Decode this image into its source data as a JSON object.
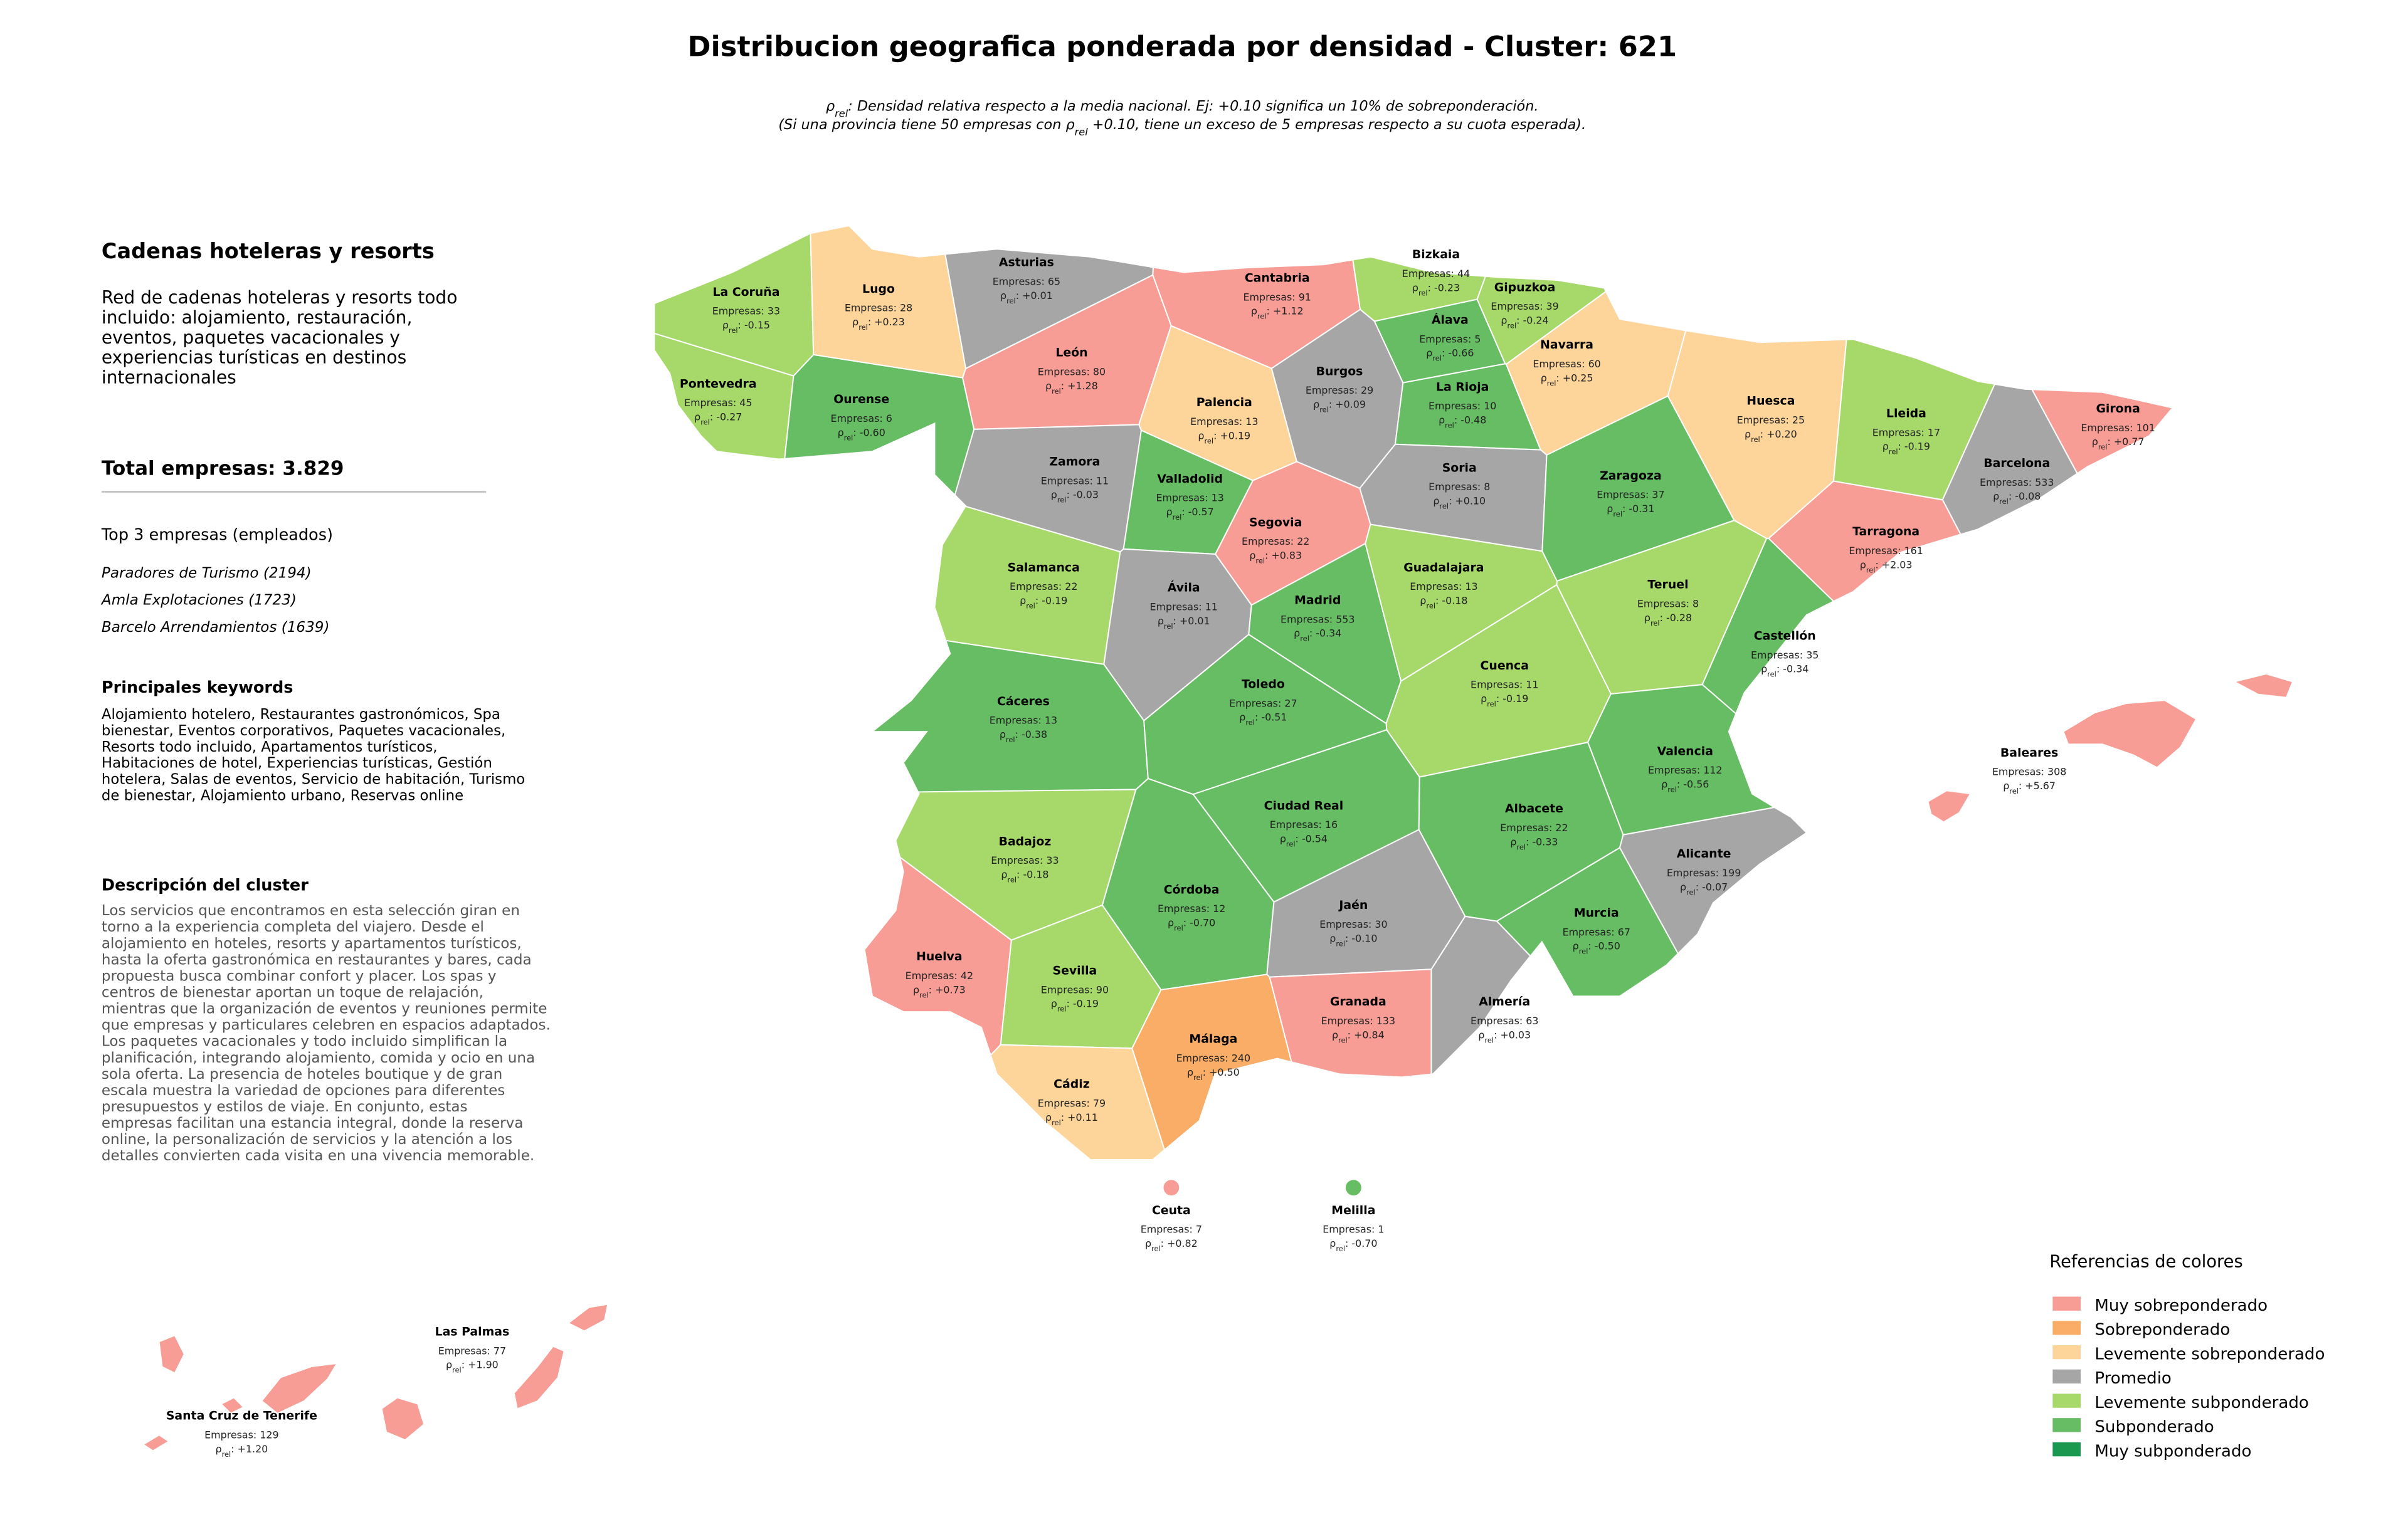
{
  "header": {
    "title": "Distribucion geografica ponderada por densidad - Cluster: 621",
    "subtitle_lines": [
      [
        {
          "text": "ρ"
        },
        {
          "text": "rel",
          "sub": true
        },
        {
          "text": ": Densidad relativa respecto a la media nacional. Ej: +0.10 significa un 10% de sobreponderación."
        }
      ],
      [
        {
          "text": "(Si una provincia tiene 50 empresas con "
        },
        {
          "text": "ρ"
        },
        {
          "text": "rel",
          "sub": true
        },
        {
          "text": " +0.10, tiene un exceso de 5 empresas respecto a su cuota esperada)."
        }
      ]
    ]
  },
  "panel": {
    "name": "Cadenas hoteleras y resorts",
    "summary_lines": [
      "Red de cadenas hoteleras y resorts todo",
      "incluido: alojamiento, restauración,",
      "eventos, paquetes vacacionales y",
      "experiencias turísticas en destinos",
      "internacionales"
    ],
    "total": "Total empresas: 3.829",
    "top_title": "Top 3 empresas (empleados)",
    "top_companies": [
      "Paradores de Turismo (2194)",
      "Amla Explotaciones (1723)",
      "Barcelo Arrendamientos (1639)"
    ],
    "keywords_title": "Principales keywords",
    "keywords_lines": [
      "Alojamiento hotelero, Restaurantes gastronómicos, Spa",
      "bienestar, Eventos corporativos, Paquetes vacacionales,",
      "Resorts todo incluido, Apartamentos turísticos,",
      "Habitaciones de hotel, Experiencias turísticas, Gestión",
      "hotelera, Salas de eventos, Servicio de habitación, Turismo",
      "de bienestar, Alojamiento urbano, Reservas online"
    ],
    "description_title": "Descripción del cluster",
    "description_lines": [
      "Los servicios que encontramos en esta selección giran en",
      "torno a la experiencia completa del viajero. Desde el",
      "alojamiento en hoteles, resorts y apartamentos turísticos,",
      "hasta la oferta gastronómica en restaurantes y bares, cada",
      "propuesta busca combinar confort y placer. Los spas y",
      "centros de bienestar aportan un toque de relajación,",
      "mientras que la organización de eventos y reuniones permite",
      "que empresas y particulares celebren en espacios adaptados.",
      "Los paquetes vacacionales y todo incluido simplifican la",
      "planificación, integrando alojamiento, comida y ocio en una",
      "sola oferta. La presencia de hoteles boutique y de gran",
      "escala muestra la variedad de opciones para diferentes",
      "presupuestos y estilos de viaje. En conjunto, estas",
      "empresas facilitan una estancia integral, donde la reserva",
      "online, la personalización de servicios y la atención a los",
      "detalles convierten cada visita en una vivencia memorable."
    ]
  },
  "map": {
    "count_prefix": "Empresas: ",
    "rho_symbol": "ρ",
    "rho_subscript": "rel",
    "rho_separator": ": ",
    "provinces": [
      {
        "name": "La Coruña",
        "count": 33,
        "rho": "-0.15",
        "color": "#a6d96a"
      },
      {
        "name": "Lugo",
        "count": 28,
        "rho": "+0.23",
        "color": "#fdd49a"
      },
      {
        "name": "Asturias",
        "count": 65,
        "rho": "+0.01",
        "color": "#a6a6a6"
      },
      {
        "name": "Cantabria",
        "count": 91,
        "rho": "+1.12",
        "color": "#f89d96"
      },
      {
        "name": "Bizkaia",
        "count": 44,
        "rho": "-0.23",
        "color": "#a6d96a"
      },
      {
        "name": "Gipuzkoa",
        "count": 39,
        "rho": "-0.24",
        "color": "#a6d96a"
      },
      {
        "name": "Pontevedra",
        "count": 45,
        "rho": "-0.27",
        "color": "#a6d96a"
      },
      {
        "name": "Ourense",
        "count": 6,
        "rho": "-0.60",
        "color": "#66bd63"
      },
      {
        "name": "León",
        "count": 80,
        "rho": "+1.28",
        "color": "#f89d96"
      },
      {
        "name": "Palencia",
        "count": 13,
        "rho": "+0.19",
        "color": "#fdd49a"
      },
      {
        "name": "Burgos",
        "count": 29,
        "rho": "+0.09",
        "color": "#a6a6a6"
      },
      {
        "name": "Álava",
        "count": 5,
        "rho": "-0.66",
        "color": "#66bd63"
      },
      {
        "name": "La Rioja",
        "count": 10,
        "rho": "-0.48",
        "color": "#66bd63"
      },
      {
        "name": "Navarra",
        "count": 60,
        "rho": "+0.25",
        "color": "#fdd49a"
      },
      {
        "name": "Huesca",
        "count": 25,
        "rho": "+0.20",
        "color": "#fdd49a"
      },
      {
        "name": "Lleida",
        "count": 17,
        "rho": "-0.19",
        "color": "#a6d96a"
      },
      {
        "name": "Girona",
        "count": 101,
        "rho": "+0.77",
        "color": "#f89d96"
      },
      {
        "name": "Barcelona",
        "count": 533,
        "rho": "-0.08",
        "color": "#a6a6a6"
      },
      {
        "name": "Zamora",
        "count": 11,
        "rho": "-0.03",
        "color": "#a6a6a6"
      },
      {
        "name": "Valladolid",
        "count": 13,
        "rho": "-0.57",
        "color": "#66bd63"
      },
      {
        "name": "Soria",
        "count": 8,
        "rho": "+0.10",
        "color": "#a6a6a6"
      },
      {
        "name": "Zaragoza",
        "count": 37,
        "rho": "-0.31",
        "color": "#66bd63"
      },
      {
        "name": "Tarragona",
        "count": 161,
        "rho": "+2.03",
        "color": "#f89d96"
      },
      {
        "name": "Segovia",
        "count": 22,
        "rho": "+0.83",
        "color": "#f89d96"
      },
      {
        "name": "Salamanca",
        "count": 22,
        "rho": "-0.19",
        "color": "#a6d96a"
      },
      {
        "name": "Guadalajara",
        "count": 13,
        "rho": "-0.18",
        "color": "#a6d96a"
      },
      {
        "name": "Teruel",
        "count": 8,
        "rho": "-0.28",
        "color": "#a6d96a"
      },
      {
        "name": "Ávila",
        "count": 11,
        "rho": "+0.01",
        "color": "#a6a6a6"
      },
      {
        "name": "Madrid",
        "count": 553,
        "rho": "-0.34",
        "color": "#66bd63"
      },
      {
        "name": "Castellón",
        "count": 35,
        "rho": "-0.34",
        "color": "#66bd63"
      },
      {
        "name": "Cuenca",
        "count": 11,
        "rho": "-0.19",
        "color": "#a6d96a"
      },
      {
        "name": "Cáceres",
        "count": 13,
        "rho": "-0.38",
        "color": "#66bd63"
      },
      {
        "name": "Toledo",
        "count": 27,
        "rho": "-0.51",
        "color": "#66bd63"
      },
      {
        "name": "Valencia",
        "count": 112,
        "rho": "-0.56",
        "color": "#66bd63"
      },
      {
        "name": "Baleares",
        "count": 308,
        "rho": "+5.67",
        "color": "#f89d96"
      },
      {
        "name": "Ciudad Real",
        "count": 16,
        "rho": "-0.54",
        "color": "#66bd63"
      },
      {
        "name": "Albacete",
        "count": 22,
        "rho": "-0.33",
        "color": "#66bd63"
      },
      {
        "name": "Badajoz",
        "count": 33,
        "rho": "-0.18",
        "color": "#a6d96a"
      },
      {
        "name": "Alicante",
        "count": 199,
        "rho": "-0.07",
        "color": "#a6a6a6"
      },
      {
        "name": "Córdoba",
        "count": 12,
        "rho": "-0.70",
        "color": "#66bd63"
      },
      {
        "name": "Jaén",
        "count": 30,
        "rho": "-0.10",
        "color": "#a6a6a6"
      },
      {
        "name": "Murcia",
        "count": 67,
        "rho": "-0.50",
        "color": "#66bd63"
      },
      {
        "name": "Huelva",
        "count": 42,
        "rho": "+0.73",
        "color": "#f89d96"
      },
      {
        "name": "Sevilla",
        "count": 90,
        "rho": "-0.19",
        "color": "#a6d96a"
      },
      {
        "name": "Granada",
        "count": 133,
        "rho": "+0.84",
        "color": "#f89d96"
      },
      {
        "name": "Almería",
        "count": 63,
        "rho": "+0.03",
        "color": "#a6a6a6"
      },
      {
        "name": "Málaga",
        "count": 240,
        "rho": "+0.50",
        "color": "#f9ad66"
      },
      {
        "name": "Cádiz",
        "count": 79,
        "rho": "+0.11",
        "color": "#fdd49a"
      },
      {
        "name": "Ceuta",
        "count": 7,
        "rho": "+0.82",
        "color": "#f89d96"
      },
      {
        "name": "Melilla",
        "count": 1,
        "rho": "-0.70",
        "color": "#66bd63"
      },
      {
        "name": "Las Palmas",
        "count": 77,
        "rho": "+1.90",
        "color": "#f89d96"
      },
      {
        "name": "Santa Cruz de Tenerife",
        "count": 129,
        "rho": "+1.20",
        "color": "#f89d96"
      }
    ]
  },
  "legend": {
    "title": "Referencias de colores",
    "items": [
      {
        "label": "Muy sobreponderado",
        "color": "#f89d96"
      },
      {
        "label": "Sobreponderado",
        "color": "#f9ad66"
      },
      {
        "label": "Levemente sobreponderado",
        "color": "#fdd49a"
      },
      {
        "label": "Promedio",
        "color": "#a6a6a6"
      },
      {
        "label": "Levemente subponderado",
        "color": "#a6d96a"
      },
      {
        "label": "Subponderado",
        "color": "#66bd63"
      },
      {
        "label": "Muy subponderado",
        "color": "#1a9850"
      }
    ]
  }
}
